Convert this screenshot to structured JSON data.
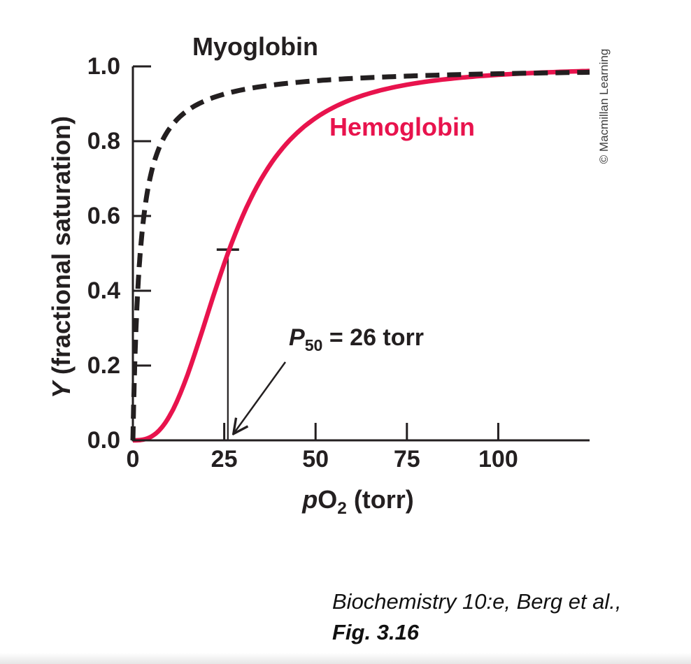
{
  "figure": {
    "copyright": "© Macmillan Learning",
    "caption_line1": "Biochemistry 10:e, Berg et al.,",
    "caption_line2": "Fig. 3.16"
  },
  "chart_data": {
    "type": "line",
    "title": "",
    "xlabel": "pO2 (torr)",
    "ylabel": "Y (fractional saturation)",
    "xlabel_parts": {
      "italic": "p",
      "main": "O",
      "sub": "2",
      "rest": " (torr)"
    },
    "ylabel_parts": {
      "italic": "Y",
      "rest": " (fractional saturation)"
    },
    "xlim": [
      0,
      125
    ],
    "ylim": [
      0,
      1.0
    ],
    "grid": false,
    "legend_position": "inline-annotations",
    "x_ticks": [
      {
        "value": 0,
        "label": "0"
      },
      {
        "value": 25,
        "label": "25"
      },
      {
        "value": 50,
        "label": "50"
      },
      {
        "value": 75,
        "label": "75"
      },
      {
        "value": 100,
        "label": "100"
      }
    ],
    "y_ticks": [
      {
        "value": 0,
        "label": "0.0"
      },
      {
        "value": 0.2,
        "label": "0.2"
      },
      {
        "value": 0.4,
        "label": "0.4"
      },
      {
        "value": 0.6,
        "label": "0.6"
      },
      {
        "value": 0.8,
        "label": "0.8"
      },
      {
        "value": 1.0,
        "label": "1.0"
      }
    ],
    "series": [
      {
        "name": "Myoglobin",
        "style": "dashed",
        "color": "#231f20",
        "model": {
          "type": "hyperbola",
          "k": 2
        },
        "points": [
          [
            0,
            0
          ],
          [
            1,
            0.333
          ],
          [
            2,
            0.5
          ],
          [
            5,
            0.714
          ],
          [
            10,
            0.833
          ],
          [
            20,
            0.909
          ],
          [
            30,
            0.938
          ],
          [
            50,
            0.962
          ],
          [
            75,
            0.974
          ],
          [
            100,
            0.98
          ],
          [
            125,
            0.984
          ]
        ]
      },
      {
        "name": "Hemoglobin",
        "style": "solid",
        "color": "#e8134d",
        "model": {
          "type": "hill",
          "n": 2.8,
          "p50": 26
        },
        "points": [
          [
            0,
            0
          ],
          [
            5,
            0.01
          ],
          [
            10,
            0.064
          ],
          [
            15,
            0.176
          ],
          [
            20,
            0.324
          ],
          [
            26,
            0.5
          ],
          [
            30,
            0.599
          ],
          [
            40,
            0.77
          ],
          [
            50,
            0.862
          ],
          [
            60,
            0.912
          ],
          [
            75,
            0.951
          ],
          [
            100,
            0.978
          ],
          [
            125,
            0.988
          ]
        ]
      }
    ],
    "annotation": {
      "label_p": "P",
      "label_sub": "50",
      "label_rest": " = 26 torr",
      "p50_x": 26,
      "p50_y": 0.51
    },
    "colors": {
      "axis": "#231f20",
      "myoglobin": "#231f20",
      "hemoglobin": "#e8134d"
    }
  }
}
